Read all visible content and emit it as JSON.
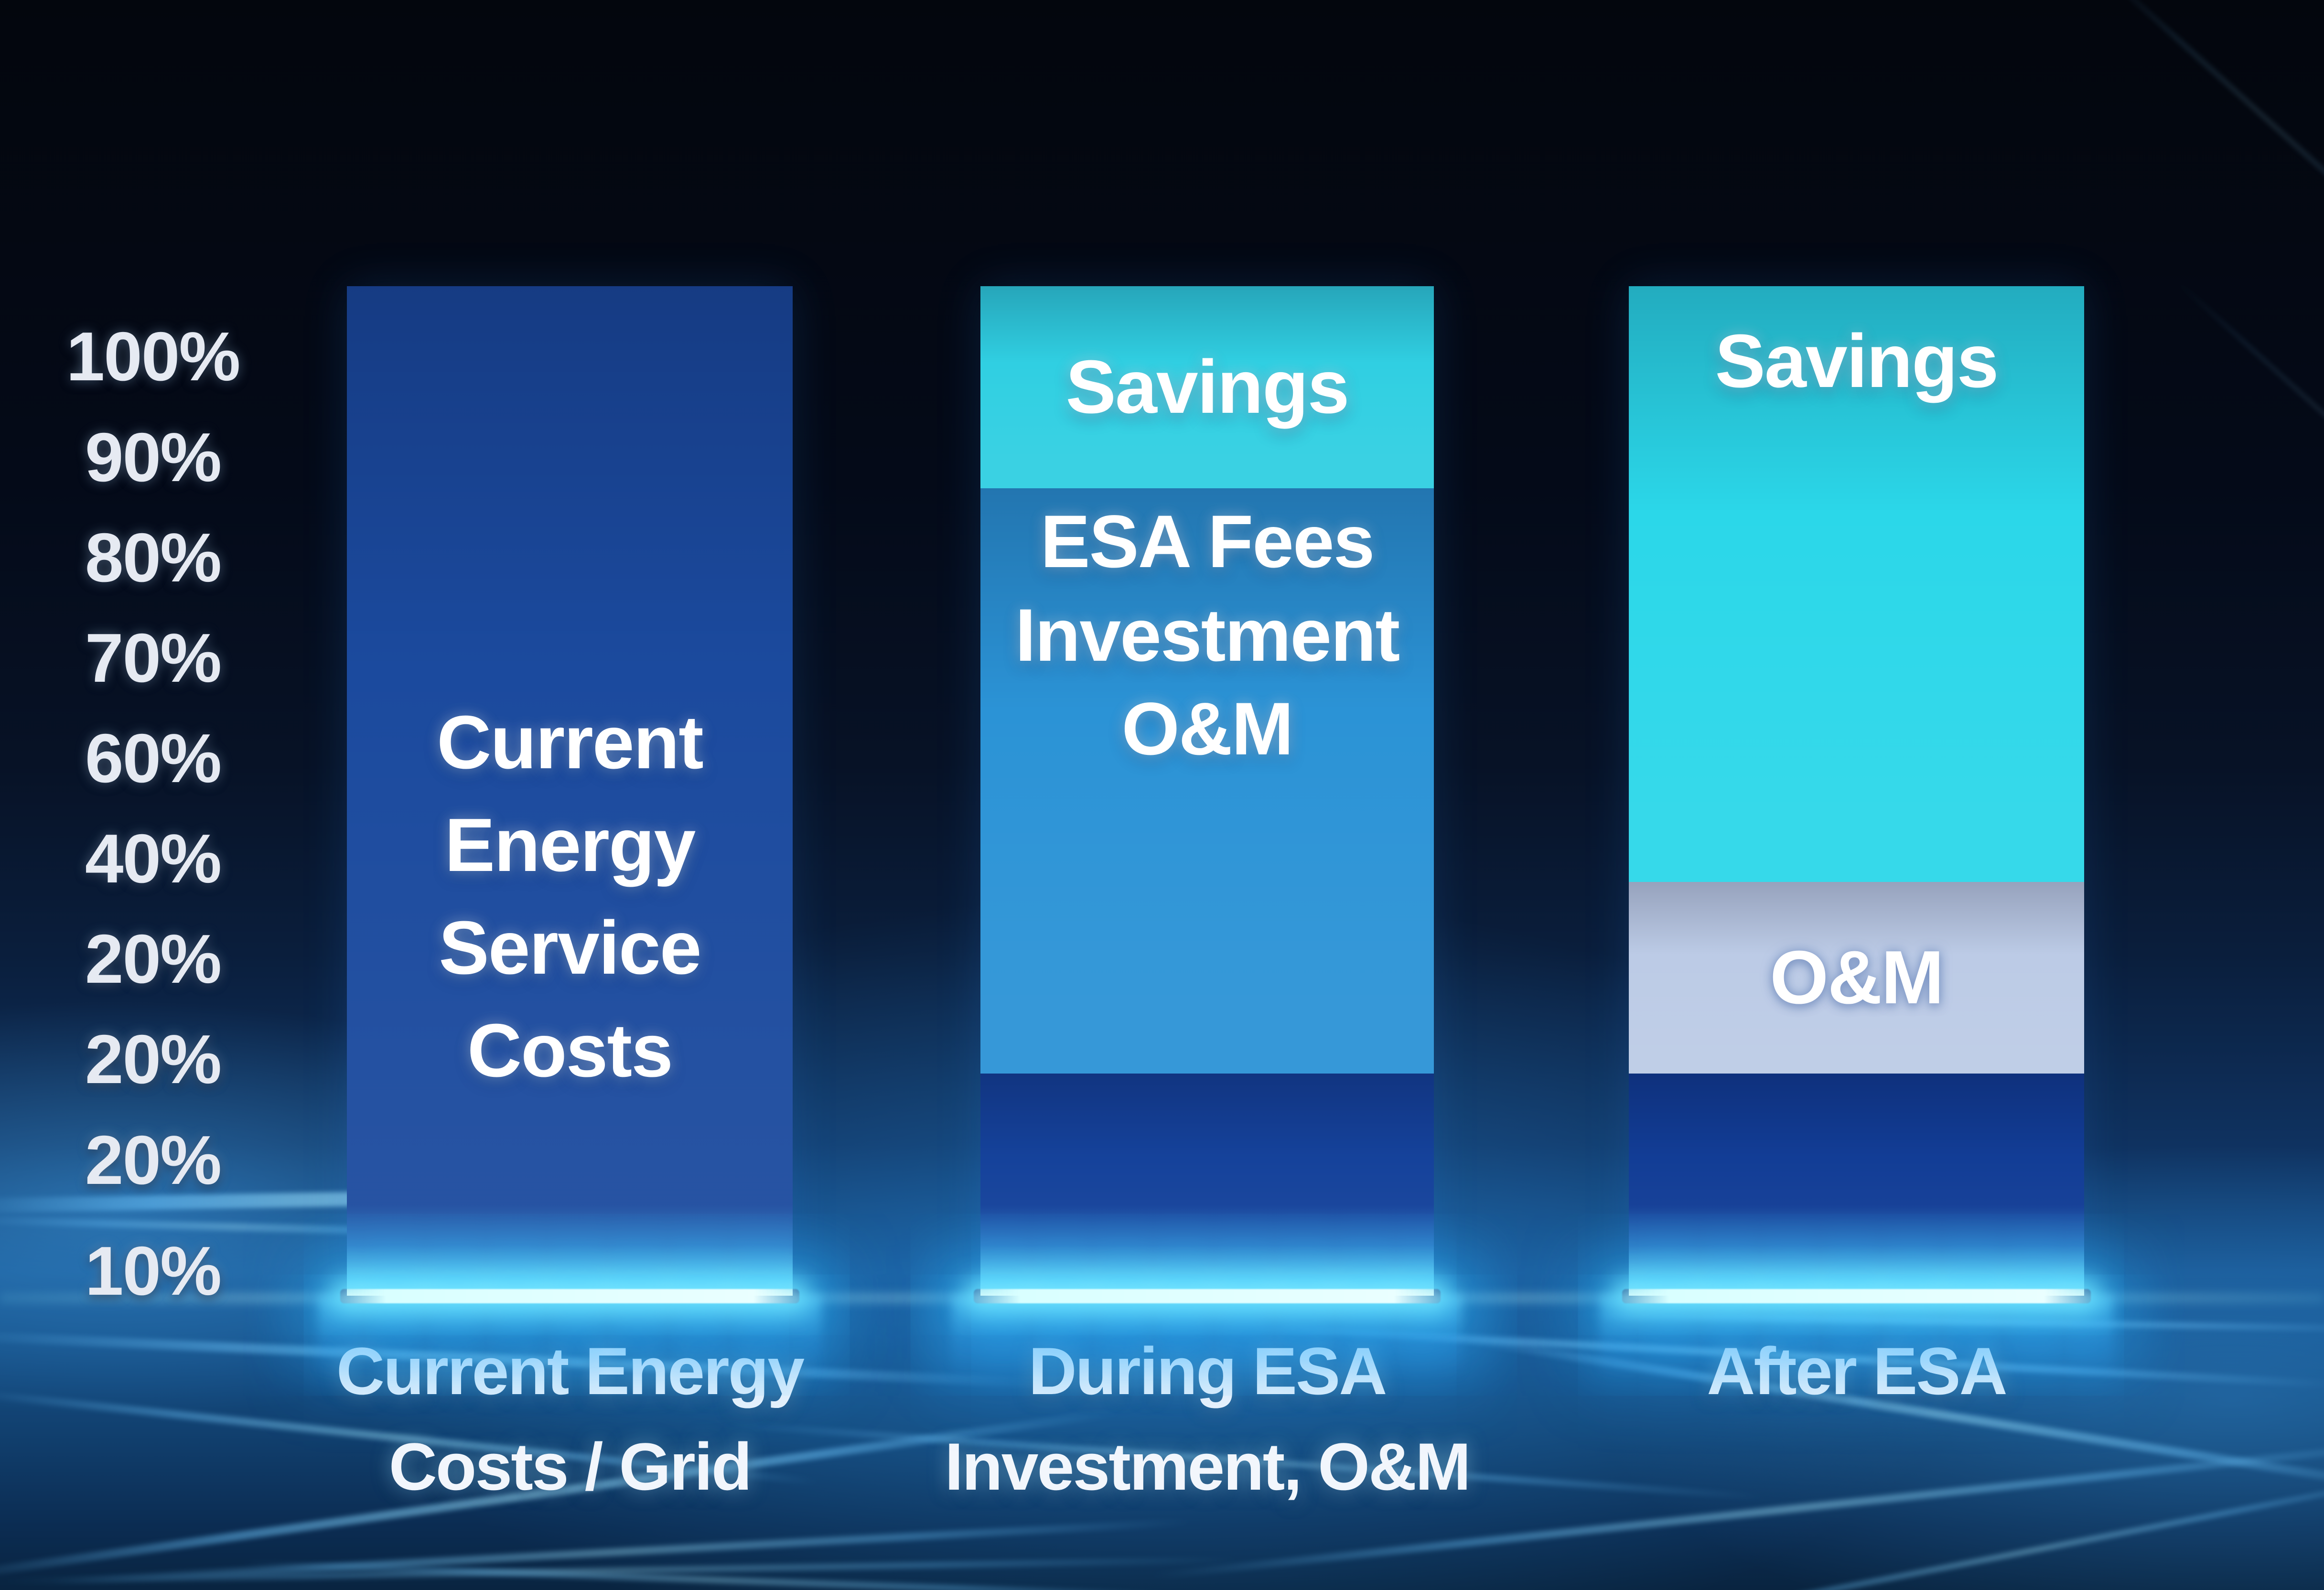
{
  "chart_data": {
    "type": "bar",
    "stacked": true,
    "unit": "%",
    "grid": false,
    "y_axis": {
      "tick_labels": [
        "100%",
        "90%",
        "80%",
        "70%",
        "60%",
        "40%",
        "20%",
        "20%",
        "20%",
        "10%"
      ]
    },
    "categories": [
      "Current Energy Costs / Grid",
      "During ESA Investment, O&M",
      "After ESA"
    ],
    "bars": [
      {
        "name": "current-energy",
        "axis_label_lines": [
          "Current Energy",
          "Costs / Grid"
        ],
        "segments": [
          {
            "label": "Current Energy Service Costs",
            "label_lines": [
              "Current",
              "Energy",
              "Service",
              "Costs"
            ],
            "value_pct": 100,
            "color": "#1b4a9e"
          }
        ]
      },
      {
        "name": "during-esa",
        "axis_label_lines": [
          "During ESA",
          "Investment, O&M"
        ],
        "segments": [
          {
            "label": "Savings",
            "label_lines": [
              "Savings"
            ],
            "value_pct": 20,
            "color": "#30cfe2"
          },
          {
            "label": "ESA Fees Investment O&M",
            "label_lines": [
              "ESA Fees",
              "Investment",
              "O&M"
            ],
            "value_pct": 58,
            "color": "#2b93d6"
          },
          {
            "label": "",
            "label_lines": [],
            "value_pct": 22,
            "color": "#15429b"
          }
        ]
      },
      {
        "name": "after-esa",
        "axis_label_lines": [
          "After ESA"
        ],
        "segments": [
          {
            "label": "Savings",
            "label_lines": [
              "Savings"
            ],
            "value_pct": 59,
            "color": "#2bd7e9"
          },
          {
            "label": "O&M",
            "label_lines": [
              "O&M"
            ],
            "value_pct": 19,
            "color": "#bccbe6"
          },
          {
            "label": "",
            "label_lines": [],
            "value_pct": 22,
            "color": "#123d96"
          }
        ]
      }
    ]
  },
  "colors": {
    "background_top": "#04070f",
    "background_glow": "#2e96d8",
    "glow_line": "#aef4ff",
    "axis_text": "#e6eaf2",
    "bar_text": "#ffffff"
  }
}
